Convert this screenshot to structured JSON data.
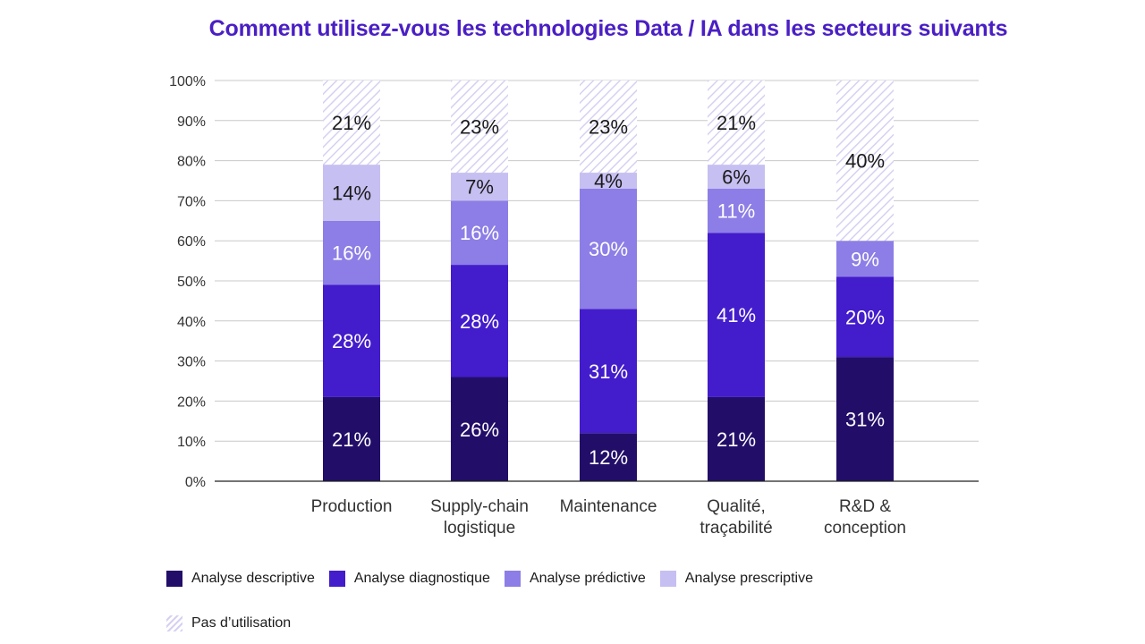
{
  "chart_data": {
    "type": "bar",
    "stacked": true,
    "title": "Comment utilisez-vous les technologies Data / IA dans les secteurs suivants",
    "categories": [
      [
        "Production"
      ],
      [
        "Supply-chain",
        "logistique"
      ],
      [
        "Maintenance"
      ],
      [
        "Qualité,",
        "traçabilité"
      ],
      [
        "R&D &",
        "conception"
      ]
    ],
    "ylim": [
      0,
      100
    ],
    "yticks": [
      "0%",
      "10%",
      "20%",
      "30%",
      "40%",
      "50%",
      "60%",
      "70%",
      "80%",
      "90%",
      "100%"
    ],
    "grid": true,
    "legend_position": "bottom-left",
    "series": [
      {
        "name": "Analyse descriptive",
        "color": "#220e69",
        "values": [
          21,
          26,
          12,
          21,
          31
        ],
        "labels": [
          "21%",
          "26%",
          "12%",
          "21%",
          "31%"
        ]
      },
      {
        "name": "Analyse diagnostique",
        "color": "#431ccc",
        "values": [
          28,
          28,
          31,
          41,
          20
        ],
        "labels": [
          "28%",
          "28%",
          "31%",
          "41%",
          "20%"
        ]
      },
      {
        "name": "Analyse prédictive",
        "color": "#8c7ee6",
        "values": [
          16,
          16,
          30,
          11,
          9
        ],
        "labels": [
          "16%",
          "16%",
          "30%",
          "11%",
          "9%"
        ]
      },
      {
        "name": "Analyse prescriptive",
        "color": "#c6bff1",
        "values": [
          14,
          7,
          4,
          6,
          0
        ],
        "labels": [
          "14%",
          "7%",
          "4%",
          "6%",
          ""
        ]
      },
      {
        "name": "Pas d’utilisation",
        "color": "#d7d0f2",
        "hatched": true,
        "values": [
          21,
          23,
          23,
          21,
          40
        ],
        "labels": [
          "21%",
          "23%",
          "23%",
          "21%",
          "40%"
        ]
      }
    ]
  }
}
